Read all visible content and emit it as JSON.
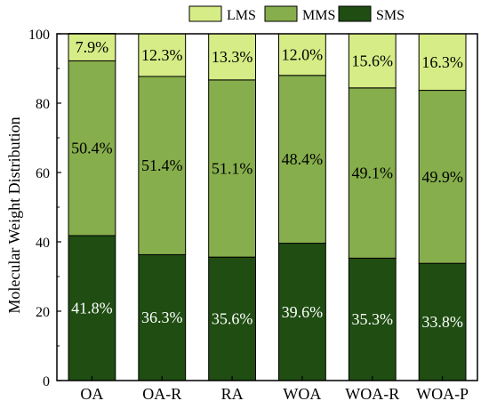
{
  "chart_data": {
    "type": "bar",
    "stacked": true,
    "categories": [
      "OA",
      "OA-R",
      "RA",
      "WOA",
      "WOA-R",
      "WOA-P"
    ],
    "series": [
      {
        "name": "SMS",
        "color": "#1f4d12",
        "values": [
          41.8,
          36.3,
          35.6,
          39.6,
          35.3,
          33.8
        ],
        "labels": [
          "41.8%",
          "36.3%",
          "35.6%",
          "39.6%",
          "35.3%",
          "33.8%"
        ]
      },
      {
        "name": "MMS",
        "color": "#86ae4c",
        "values": [
          50.4,
          51.4,
          51.1,
          48.4,
          49.1,
          49.9
        ],
        "labels": [
          "50.4%",
          "51.4%",
          "51.1%",
          "48.4%",
          "49.1%",
          "49.9%"
        ]
      },
      {
        "name": "LMS",
        "color": "#d6ec86",
        "values": [
          7.9,
          12.3,
          13.3,
          12.0,
          15.6,
          16.3
        ],
        "labels": [
          "7.9%",
          "12.3%",
          "13.3%",
          "12.0%",
          "15.6%",
          "16.3%"
        ]
      }
    ],
    "legend_order": [
      "LMS",
      "MMS",
      "SMS"
    ],
    "legend_position": "top",
    "ylabel": "Molecular Weight Distribution",
    "xlabel": "",
    "ylim": [
      0,
      100
    ],
    "yticks": [
      0,
      20,
      40,
      60,
      80,
      100
    ],
    "grid": false
  }
}
